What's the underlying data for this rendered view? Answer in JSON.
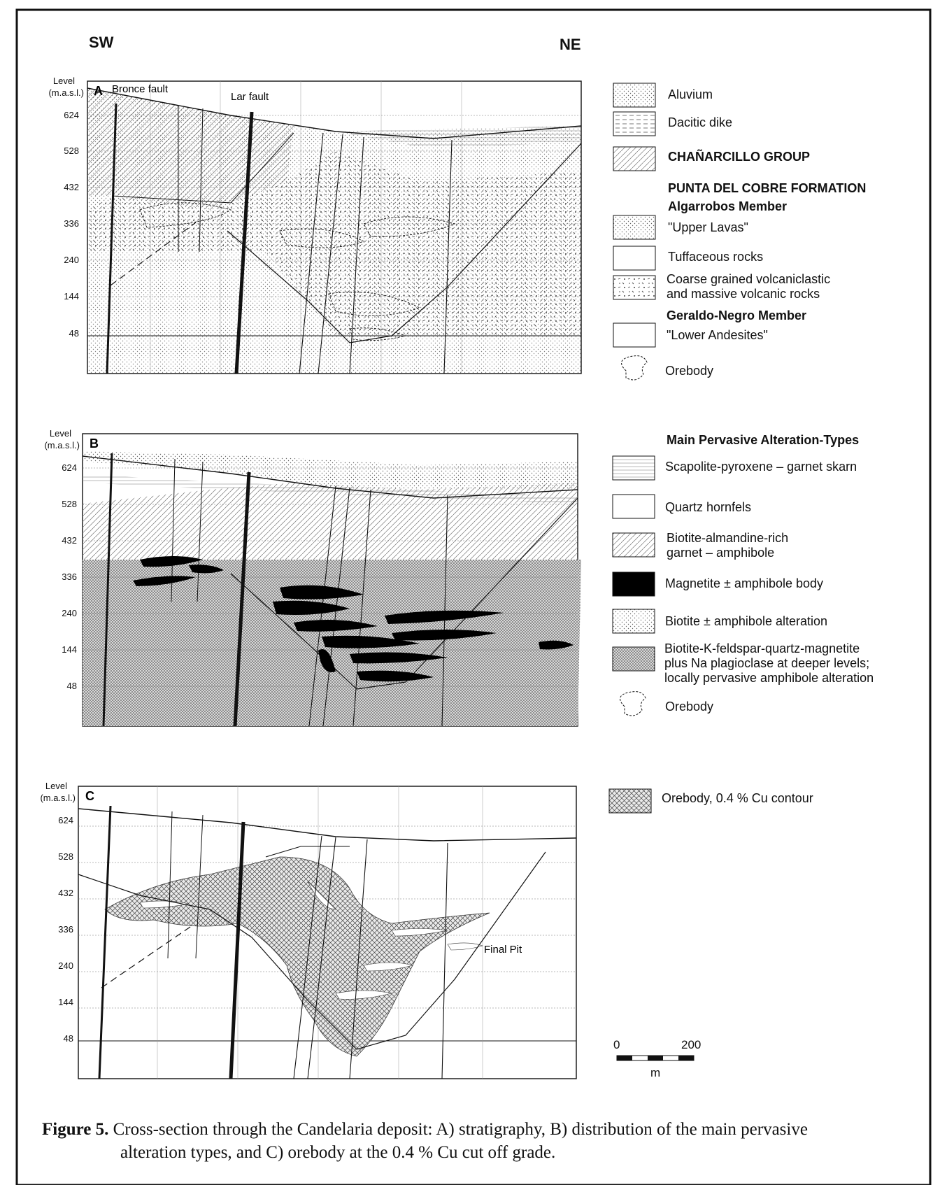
{
  "directions": {
    "left": "SW",
    "right": "NE"
  },
  "level_header": "Level",
  "level_unit": "(m.a.s.l.)",
  "levels": [
    "624",
    "528",
    "432",
    "336",
    "240",
    "144",
    "48"
  ],
  "panels": [
    {
      "letter": "A",
      "annotations": [
        "Bronce fault",
        "Lar fault"
      ]
    },
    {
      "letter": "B",
      "annotations": []
    },
    {
      "letter": "C",
      "annotations": [
        "Final Pit"
      ]
    }
  ],
  "legend_a": {
    "aluvium": "Aluvium",
    "dacitic_dike": "Dacitic dike",
    "chanarcillo": "CHAÑARCILLO GROUP",
    "punta_del_cobre": "PUNTA DEL COBRE FORMATION",
    "algarrobos": "Algarrobos Member",
    "upper_lavas": "\"Upper Lavas\"",
    "tuffaceous": "Tuffaceous rocks",
    "coarse_1": "Coarse grained volcaniclastic",
    "coarse_2": "and massive volcanic rocks",
    "geraldo": "Geraldo-Negro Member",
    "lower_andesites": "\"Lower Andesites\"",
    "orebody": "Orebody"
  },
  "legend_b": {
    "heading": "Main Pervasive Alteration-Types",
    "scapolite": "Scapolite-pyroxene – garnet skarn",
    "quartz": "Quartz hornfels",
    "biotite_alm_1": "Biotite-almandine-rich",
    "biotite_alm_2": "garnet – amphibole",
    "magnetite": "Magnetite ± amphibole body",
    "biotite_amph": "Biotite ± amphibole alteration",
    "biotite_k_1": "Biotite-K-feldspar-quartz-magnetite",
    "biotite_k_2": "plus Na plagioclase at deeper levels;",
    "biotite_k_3": "locally pervasive amphibole alteration",
    "orebody": "Orebody"
  },
  "legend_c": {
    "orebody_cu": "Orebody, 0.4 % Cu contour"
  },
  "scale_bar": {
    "start": "0",
    "end": "200",
    "unit": "m"
  },
  "caption": {
    "label": "Figure 5.",
    "line1": "Cross-section through the Candelaria deposit: A) stratigraphy, B) distribution of the main pervasive",
    "line2": "alteration types, and C) orebody at the 0.4 % Cu cut off grade."
  }
}
